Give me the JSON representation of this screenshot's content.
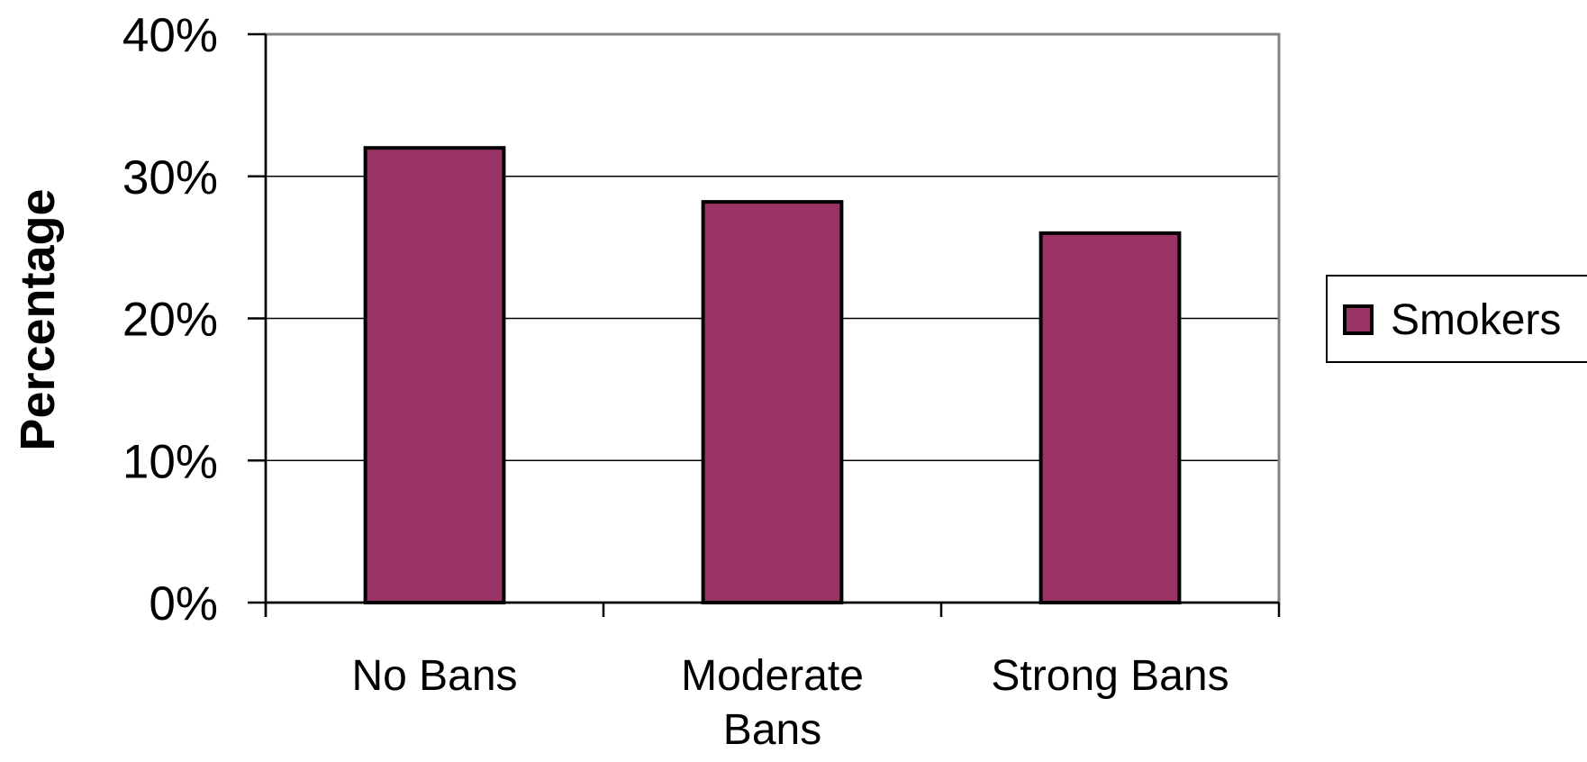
{
  "chart_data": {
    "type": "bar",
    "categories": [
      "No Bans",
      "Moderate Bans",
      "Strong Bans"
    ],
    "category_lines": [
      [
        "No Bans"
      ],
      [
        "Moderate",
        "Bans"
      ],
      [
        "Strong Bans"
      ]
    ],
    "series": [
      {
        "name": "Smokers",
        "values": [
          32,
          28.2,
          26
        ],
        "color": "#993366"
      }
    ],
    "ylabel": "Percentage",
    "xlabel": "",
    "ylim": [
      0,
      40
    ],
    "yticks": [
      0,
      10,
      20,
      30,
      40
    ],
    "ytick_labels": [
      "0%",
      "10%",
      "20%",
      "30%",
      "40%"
    ],
    "grid": true,
    "legend": {
      "position": "right",
      "entries": [
        "Smokers"
      ]
    }
  }
}
